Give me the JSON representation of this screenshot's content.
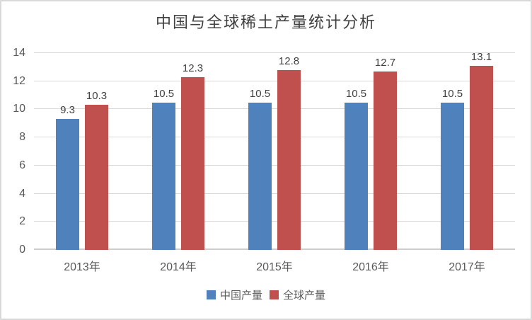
{
  "title": "中国与全球稀土产量统计分析",
  "chart_data": {
    "type": "bar",
    "title": "中国与全球稀土产量统计分析",
    "categories": [
      "2013年",
      "2014年",
      "2015年",
      "2016年",
      "2017年"
    ],
    "series": [
      {
        "name": "中国产量",
        "color": "#4F81BD",
        "values": [
          9.3,
          10.5,
          10.5,
          10.5,
          10.5
        ]
      },
      {
        "name": "全球产量",
        "color": "#C0504D",
        "values": [
          10.3,
          12.3,
          12.8,
          12.7,
          13.1
        ]
      }
    ],
    "xlabel": "",
    "ylabel": "",
    "ylim": [
      0,
      14
    ],
    "ytick_step": 2,
    "grid": true,
    "legend_position": "bottom"
  },
  "colors": {
    "background": "#FFFFFF",
    "frame_border": "#D9D9D9",
    "gridline": "#D9D9D9",
    "axis_line": "#CDCDCD",
    "tick_text": "#595959",
    "value_label_text": "#404040",
    "title_text": "#404040",
    "series_blue": "#4F81BD",
    "series_red": "#C0504D"
  }
}
